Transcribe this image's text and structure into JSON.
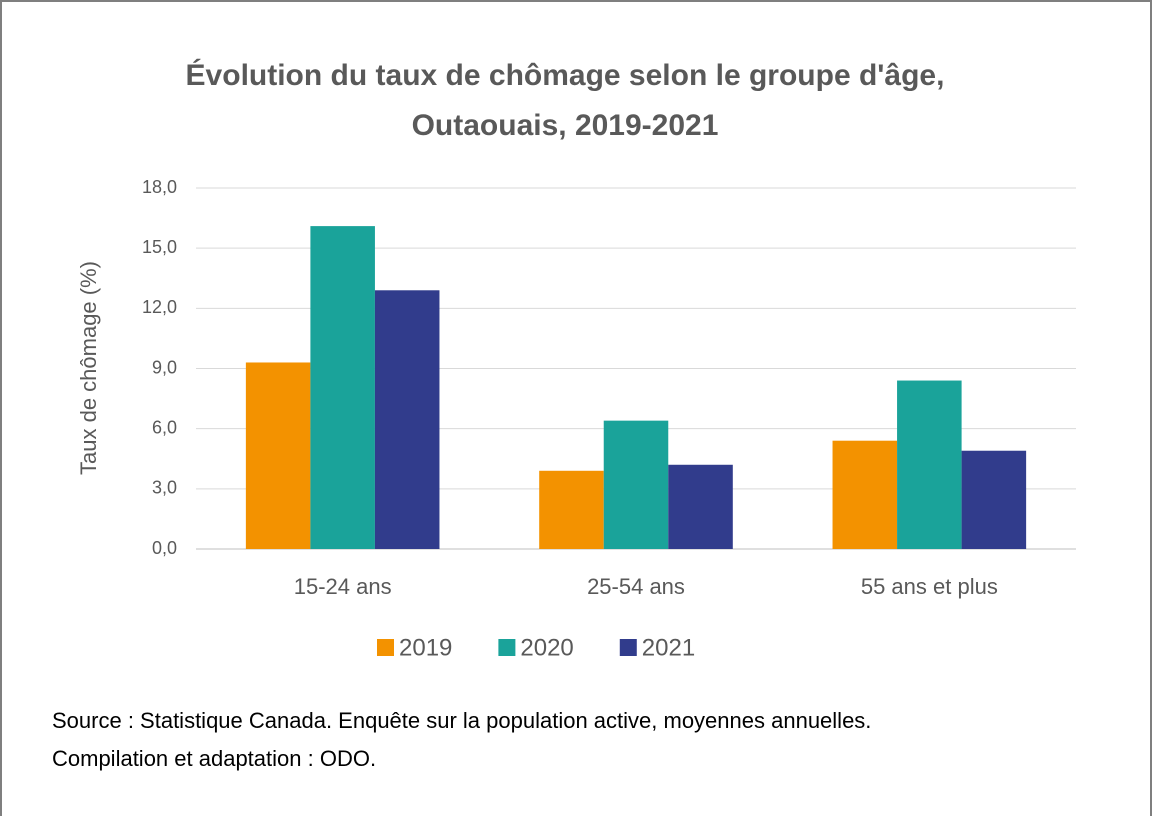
{
  "chart_data": {
    "type": "bar",
    "title": [
      "Évolution du taux de chômage selon le groupe d'âge,",
      "Outaouais, 2019-2021"
    ],
    "y_label": "Taux de chômage (%)",
    "categories": [
      "15-24 ans",
      "25-54 ans",
      "55 ans et plus"
    ],
    "series": [
      {
        "name": "2019",
        "color": "#f39200",
        "values": [
          9.3,
          3.9,
          5.4
        ]
      },
      {
        "name": "2020",
        "color": "#1aa39a",
        "values": [
          16.1,
          6.4,
          8.4
        ]
      },
      {
        "name": "2021",
        "color": "#313c8c",
        "values": [
          12.9,
          4.2,
          4.9
        ]
      }
    ],
    "ylim": [
      0,
      18
    ],
    "yticks": [
      {
        "value": 0,
        "label": "0,0"
      },
      {
        "value": 3,
        "label": "3,0"
      },
      {
        "value": 6,
        "label": "6,0"
      },
      {
        "value": 9,
        "label": "9,0"
      },
      {
        "value": 12,
        "label": "12,0"
      },
      {
        "value": 15,
        "label": "15,0"
      },
      {
        "value": 18,
        "label": "18,0"
      }
    ],
    "grid": true,
    "legend": "bottom",
    "source": [
      "Source : Statistique Canada. Enquête sur la population active, moyennes annuelles.",
      "Compilation et adaptation : ODO."
    ]
  }
}
